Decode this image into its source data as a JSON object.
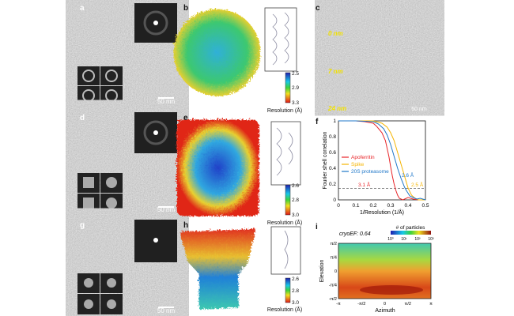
{
  "panel_labels": [
    "a",
    "b",
    "c",
    "d",
    "e",
    "f",
    "g",
    "h",
    "i"
  ],
  "scale_bar": "50 nm",
  "tomo_depths": [
    "0 nm",
    "7 nm",
    "24 nm"
  ],
  "colorbars": [
    {
      "ticks": [
        "2.5",
        "2.9",
        "3.3"
      ],
      "label": "Resolution (Å)"
    },
    {
      "ticks": [
        "2.6",
        "2.8",
        "3.0"
      ],
      "label": "Resolution (Å)"
    },
    {
      "ticks": [
        "2.6",
        "2.8",
        "3.0"
      ],
      "label": "Resolution (Å)"
    }
  ],
  "chart_data": [
    {
      "type": "line",
      "xlabel": "1/Resolution (1/Å)",
      "ylabel": "Fourier shell correlation",
      "xlim": [
        0,
        0.5
      ],
      "ylim": [
        0,
        1
      ],
      "xticks": [
        "0",
        "0.1",
        "0.2",
        "0.3",
        "0.4",
        "0.5"
      ],
      "yticks": [
        "0",
        "0.2",
        "0.4",
        "0.6",
        "0.8",
        "1"
      ],
      "threshold": 0.143,
      "legend": "center-left",
      "series": [
        {
          "name": "Apoferritin",
          "color": "#e8262a",
          "annotation": "3.1 Å",
          "x": [
            0,
            0.1,
            0.15,
            0.2,
            0.22,
            0.25,
            0.27,
            0.29,
            0.3,
            0.31,
            0.32,
            0.33,
            0.34,
            0.35,
            0.37,
            0.4,
            0.43,
            0.46,
            0.5
          ],
          "y": [
            1,
            1,
            0.99,
            0.97,
            0.93,
            0.85,
            0.75,
            0.55,
            0.42,
            0.3,
            0.2,
            0.12,
            0.06,
            0.02,
            0,
            0.03,
            0.01,
            0,
            0
          ]
        },
        {
          "name": "Spike",
          "color": "#f5b400",
          "annotation": "2.5 Å",
          "x": [
            0,
            0.1,
            0.2,
            0.25,
            0.28,
            0.3,
            0.32,
            0.34,
            0.36,
            0.38,
            0.4,
            0.42,
            0.44,
            0.46,
            0.5
          ],
          "y": [
            1,
            1,
            1,
            0.97,
            0.92,
            0.85,
            0.75,
            0.6,
            0.45,
            0.3,
            0.15,
            0.06,
            0.02,
            0,
            0
          ]
        },
        {
          "name": "20S proteasome",
          "color": "#1f77c8",
          "annotation": "2.6 Å",
          "x": [
            0,
            0.1,
            0.2,
            0.23,
            0.26,
            0.28,
            0.3,
            0.32,
            0.34,
            0.36,
            0.38,
            0.39,
            0.41,
            0.43,
            0.45,
            0.47,
            0.5
          ],
          "y": [
            1,
            1,
            0.99,
            0.96,
            0.9,
            0.82,
            0.7,
            0.55,
            0.4,
            0.27,
            0.16,
            0.12,
            0.05,
            0.03,
            0.01,
            0.02,
            0
          ]
        }
      ]
    },
    {
      "type": "heatmap",
      "title": "cryoEF: 0.64",
      "xlabel": "Azimuth",
      "ylabel": "Elevation",
      "xticks": [
        "-π",
        "-π/2",
        "0",
        "π/2",
        "π"
      ],
      "yticks": [
        "π/2",
        "π/4",
        "0",
        "-π/4",
        "-π/2"
      ],
      "colorbar_label": "# of particles",
      "colorbar_ticks": [
        "10⁰",
        "10¹",
        "10²",
        "10³"
      ],
      "colorbar_scale": "log"
    }
  ]
}
